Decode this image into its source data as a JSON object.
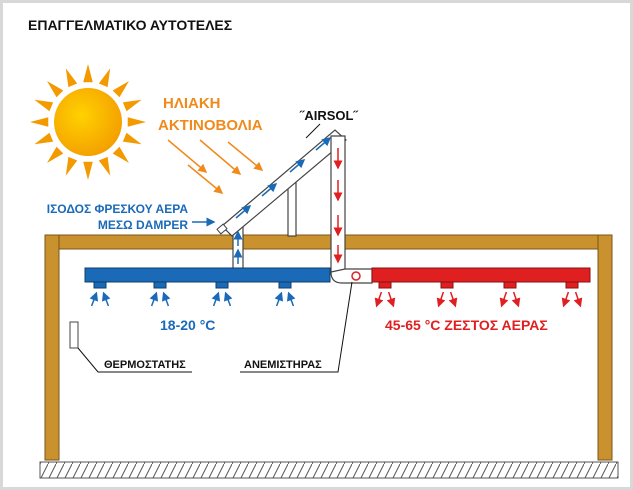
{
  "header": {
    "title": "ΕΠΑΓΓΕΛΜΑΤΙΚΟ ΑΥΤΟΤΕΛΕΣ"
  },
  "labels": {
    "radiation": [
      "ΗΛΙΑΚΗ",
      "ΑΚΤΙΝΟΒΟΛΙΑ"
    ],
    "product": "˝AIRSOL˝",
    "intake": [
      "ΙΣΟΔΟΣ ΦΡΕΣΚΟΥ ΑΕΡΑ",
      "ΜΕΣΩ DAMPER"
    ],
    "cold": "18-20 °C",
    "hot": "45-65 °C ΖΕΣΤΟΣ ΑΕΡΑΣ",
    "thermostat": "ΘΕΡΜΟΣΤΑΤΗΣ",
    "fan": "ΑΝΕΜΙΣΤΗΡΑΣ"
  }
}
